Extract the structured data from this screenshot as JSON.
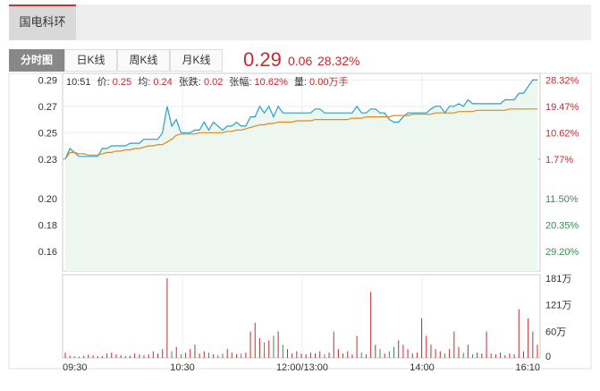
{
  "stock_name": "国电科环",
  "tabs": [
    {
      "label": "分时图",
      "active": true
    },
    {
      "label": "日K线",
      "active": false
    },
    {
      "label": "周K线",
      "active": false
    },
    {
      "label": "月K线",
      "active": false
    }
  ],
  "quote": {
    "price": "0.29",
    "change": "0.06",
    "change_pct": "28.32%"
  },
  "info": {
    "time": "10:51",
    "price_label": "价:",
    "price": "0.25",
    "avg_label": "均:",
    "avg": "0.24",
    "chg_label": "张跌:",
    "chg": "0.02",
    "pct_label": "张幅:",
    "pct": "10.62%",
    "vol_label": "量:",
    "vol": "0.00万手"
  },
  "colors": {
    "up": "#c8282d",
    "down": "#3a8a5a",
    "price_line": "#2aa0c8",
    "avg_line": "#e08a1a",
    "fill": "#eef6f0"
  },
  "chart_data": {
    "type": "line",
    "x_ticks": [
      "09:30",
      "10:30",
      "12:00/13:00",
      "14:00",
      "16:10"
    ],
    "y_ticks": [
      "0.29",
      "0.27",
      "0.25",
      "0.23",
      "0.20",
      "0.18",
      "0.16"
    ],
    "pct_ticks": [
      {
        "label": "28.32%",
        "dir": "up"
      },
      {
        "label": "19.47%",
        "dir": "up"
      },
      {
        "label": "10.62%",
        "dir": "up"
      },
      {
        "label": "1.77%",
        "dir": "up"
      },
      {
        "label": "11.50%",
        "dir": "down"
      },
      {
        "label": "20.35%",
        "dir": "down"
      },
      {
        "label": "29.20%",
        "dir": "down"
      }
    ],
    "ylim": [
      0.145,
      0.295
    ],
    "prev_close": 0.23,
    "vol_ticks": [
      "181万",
      "121万",
      "60万",
      "0"
    ],
    "vol_max": 181,
    "series": [
      {
        "name": "价",
        "values": [
          0.23,
          0.238,
          0.235,
          0.232,
          0.232,
          0.232,
          0.232,
          0.232,
          0.238,
          0.238,
          0.24,
          0.24,
          0.24,
          0.24,
          0.242,
          0.242,
          0.242,
          0.245,
          0.245,
          0.245,
          0.245,
          0.25,
          0.27,
          0.255,
          0.26,
          0.25,
          0.25,
          0.25,
          0.252,
          0.252,
          0.258,
          0.252,
          0.258,
          0.255,
          0.252,
          0.255,
          0.255,
          0.258,
          0.255,
          0.255,
          0.262,
          0.262,
          0.27,
          0.265,
          0.27,
          0.262,
          0.27,
          0.265,
          0.265,
          0.265,
          0.265,
          0.265,
          0.265,
          0.265,
          0.268,
          0.268,
          0.265,
          0.265,
          0.265,
          0.265,
          0.265,
          0.265,
          0.265,
          0.27,
          0.265,
          0.265,
          0.268,
          0.268,
          0.265,
          0.265,
          0.26,
          0.258,
          0.258,
          0.262,
          0.265,
          0.265,
          0.265,
          0.265,
          0.265,
          0.268,
          0.27,
          0.27,
          0.265,
          0.27,
          0.27,
          0.272,
          0.27,
          0.275,
          0.272,
          0.272,
          0.272,
          0.272,
          0.272,
          0.272,
          0.272,
          0.275,
          0.275,
          0.275,
          0.28,
          0.28,
          0.285,
          0.29,
          0.29
        ]
      },
      {
        "name": "均",
        "values": [
          0.23,
          0.235,
          0.235,
          0.234,
          0.234,
          0.233,
          0.233,
          0.233,
          0.234,
          0.235,
          0.235,
          0.236,
          0.236,
          0.237,
          0.237,
          0.238,
          0.238,
          0.239,
          0.24,
          0.24,
          0.241,
          0.241,
          0.243,
          0.245,
          0.248,
          0.249,
          0.249,
          0.249,
          0.249,
          0.25,
          0.25,
          0.25,
          0.25,
          0.25,
          0.25,
          0.251,
          0.251,
          0.252,
          0.252,
          0.253,
          0.254,
          0.255,
          0.256,
          0.256,
          0.257,
          0.257,
          0.258,
          0.258,
          0.258,
          0.258,
          0.259,
          0.259,
          0.259,
          0.259,
          0.26,
          0.26,
          0.26,
          0.26,
          0.26,
          0.26,
          0.26,
          0.26,
          0.261,
          0.261,
          0.261,
          0.262,
          0.262,
          0.262,
          0.262,
          0.262,
          0.262,
          0.263,
          0.263,
          0.263,
          0.263,
          0.264,
          0.264,
          0.264,
          0.264,
          0.264,
          0.265,
          0.265,
          0.265,
          0.265,
          0.265,
          0.266,
          0.266,
          0.266,
          0.266,
          0.267,
          0.267,
          0.267,
          0.267,
          0.267,
          0.267,
          0.267,
          0.268,
          0.268,
          0.268,
          0.268,
          0.268,
          0.268,
          0.268
        ]
      },
      {
        "name": "量",
        "values": [
          12,
          5,
          4,
          3,
          5,
          8,
          6,
          4,
          4,
          10,
          12,
          8,
          6,
          4,
          5,
          10,
          8,
          6,
          8,
          15,
          10,
          20,
          181,
          15,
          25,
          8,
          12,
          20,
          30,
          10,
          15,
          12,
          8,
          6,
          10,
          20,
          12,
          8,
          10,
          12,
          60,
          80,
          45,
          35,
          40,
          50,
          60,
          30,
          20,
          10,
          15,
          10,
          8,
          12,
          10,
          15,
          8,
          12,
          60,
          20,
          10,
          15,
          8,
          50,
          12,
          8,
          150,
          30,
          20,
          10,
          15,
          25,
          40,
          30,
          20,
          10,
          12,
          90,
          50,
          30,
          20,
          15,
          10,
          20,
          60,
          25,
          12,
          30,
          8,
          12,
          10,
          60,
          10,
          8,
          12,
          6,
          10,
          8,
          110,
          15,
          90,
          60,
          30
        ]
      }
    ]
  }
}
